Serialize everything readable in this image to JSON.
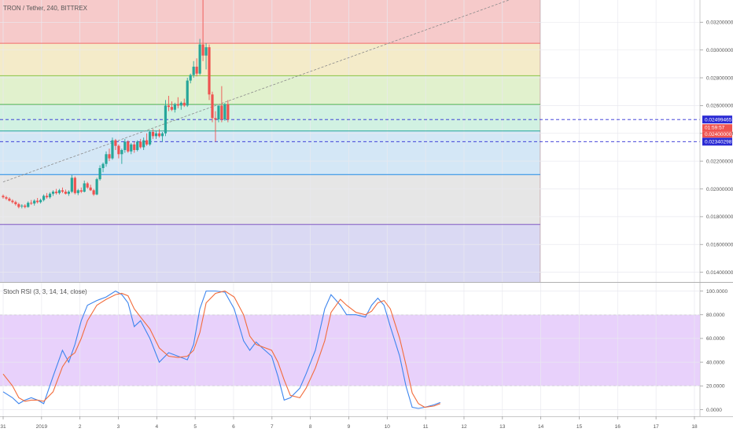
{
  "chart_data": [
    {
      "type": "candlestick",
      "title": "TRON / Tether, 240, BITTREX",
      "ylim": [
        0.0133,
        0.0336
      ],
      "y_ticks": [
        "0.01400000",
        "0.01600000",
        "0.01800000",
        "0.02000000",
        "0.02200000",
        "0.02400000",
        "0.02600000",
        "0.02800000",
        "0.03000000",
        "0.03200000"
      ],
      "y_tick_values": [
        0.014,
        0.016,
        0.018,
        0.02,
        0.022,
        0.024,
        0.026,
        0.028,
        0.03,
        0.032
      ],
      "x_tick_labels": [
        "31",
        "2019",
        "2",
        "3",
        "4",
        "5",
        "6",
        "7",
        "8",
        "9",
        "10",
        "11",
        "12",
        "13",
        "14",
        "15",
        "16",
        "17",
        "18"
      ],
      "x_tick_index": [
        0,
        12.3,
        24.6,
        36.9,
        49.2,
        61.5,
        73.8,
        86.1,
        98.4,
        110.7,
        123,
        135.3,
        147.6,
        159.9,
        172.2,
        184.5,
        196.8,
        209.1,
        221.4
      ],
      "grid": true,
      "fib_levels": [
        {
          "price": 0.03048,
          "color": "#f26b6b"
        },
        {
          "price": 0.02815,
          "color": "#8bc34a"
        },
        {
          "price": 0.02608,
          "color": "#4caf50"
        },
        {
          "price": 0.02417,
          "color": "#26a69a"
        },
        {
          "price": 0.02103,
          "color": "#1e88e5"
        },
        {
          "price": 0.01744,
          "color": "#7e57c2"
        }
      ],
      "fib_zones": [
        {
          "top": 0.0336,
          "bottom": 0.03048,
          "color": "#f5c1c1"
        },
        {
          "top": 0.03048,
          "bottom": 0.02815,
          "color": "#f2e7c0"
        },
        {
          "top": 0.02815,
          "bottom": 0.02608,
          "color": "#dcefc4"
        },
        {
          "top": 0.02608,
          "bottom": 0.02417,
          "color": "#c9eedd"
        },
        {
          "top": 0.02417,
          "bottom": 0.02103,
          "color": "#cde3f4"
        },
        {
          "top": 0.02103,
          "bottom": 0.01744,
          "color": "#e2e2e2"
        },
        {
          "top": 0.01744,
          "bottom": 0.0133,
          "color": "#d4d2f1"
        }
      ],
      "fib_right_index": 172,
      "horizontal_levels": [
        {
          "price": 0.02499465,
          "label": "0.02499465",
          "color": "#2a2ad4"
        },
        {
          "price": 0.02340298,
          "label": "0.02340298",
          "color": "#2a2ad4"
        }
      ],
      "last_price_label": "0.02400000",
      "countdown_label": "01:59:57",
      "trendline": {
        "x0": 0,
        "y0": 0.0205,
        "x1": 162,
        "y1": 0.0336
      },
      "candles": [
        [
          0.0195,
          0.0196,
          0.0193,
          0.0194
        ],
        [
          0.0194,
          0.0195,
          0.0192,
          0.0193
        ],
        [
          0.0193,
          0.0194,
          0.0191,
          0.01915
        ],
        [
          0.01915,
          0.01925,
          0.01895,
          0.01905
        ],
        [
          0.01905,
          0.01915,
          0.0188,
          0.0189
        ],
        [
          0.0189,
          0.019,
          0.0186,
          0.0187
        ],
        [
          0.01875,
          0.0189,
          0.0186,
          0.0188
        ],
        [
          0.0188,
          0.0189,
          0.0186,
          0.0187
        ],
        [
          0.0187,
          0.0191,
          0.01865,
          0.019
        ],
        [
          0.019,
          0.0192,
          0.01885,
          0.01895
        ],
        [
          0.01895,
          0.01925,
          0.0188,
          0.01915
        ],
        [
          0.01915,
          0.01935,
          0.01895,
          0.01905
        ],
        [
          0.01905,
          0.0193,
          0.01895,
          0.0192
        ],
        [
          0.0192,
          0.0196,
          0.0191,
          0.0195
        ],
        [
          0.0195,
          0.0197,
          0.0193,
          0.0194
        ],
        [
          0.0194,
          0.01975,
          0.0193,
          0.01965
        ],
        [
          0.01965,
          0.0199,
          0.0195,
          0.0198
        ],
        [
          0.0198,
          0.02,
          0.0196,
          0.0197
        ],
        [
          0.0197,
          0.02,
          0.0196,
          0.0199
        ],
        [
          0.0199,
          0.0201,
          0.0197,
          0.0198
        ],
        [
          0.0198,
          0.01995,
          0.0196,
          0.01965
        ],
        [
          0.01965,
          0.0199,
          0.0195,
          0.0198
        ],
        [
          0.0198,
          0.021,
          0.0197,
          0.0208
        ],
        [
          0.0208,
          0.0209,
          0.0196,
          0.0197
        ],
        [
          0.0197,
          0.02,
          0.01955,
          0.0199
        ],
        [
          0.0199,
          0.0201,
          0.0197,
          0.0198
        ],
        [
          0.0198,
          0.0206,
          0.01975,
          0.0204
        ],
        [
          0.0204,
          0.0205,
          0.02,
          0.0201
        ],
        [
          0.0201,
          0.0203,
          0.01985,
          0.0199
        ],
        [
          0.0199,
          0.02,
          0.0195,
          0.0196
        ],
        [
          0.0196,
          0.0208,
          0.01955,
          0.0207
        ],
        [
          0.0207,
          0.0217,
          0.0206,
          0.0215
        ],
        [
          0.0215,
          0.0219,
          0.0212,
          0.0218
        ],
        [
          0.0218,
          0.0227,
          0.0216,
          0.0225
        ],
        [
          0.0225,
          0.0229,
          0.022,
          0.0222
        ],
        [
          0.0222,
          0.0237,
          0.0221,
          0.0235
        ],
        [
          0.0235,
          0.0236,
          0.0228,
          0.0231
        ],
        [
          0.0231,
          0.0232,
          0.0222,
          0.0225
        ],
        [
          0.0225,
          0.0229,
          0.0218,
          0.0228
        ],
        [
          0.0228,
          0.0236,
          0.0226,
          0.0234
        ],
        [
          0.0234,
          0.0235,
          0.0226,
          0.0227
        ],
        [
          0.0227,
          0.0233,
          0.0225,
          0.0232
        ],
        [
          0.0232,
          0.0234,
          0.0226,
          0.0228
        ],
        [
          0.0228,
          0.0235,
          0.0227,
          0.0234
        ],
        [
          0.0234,
          0.0236,
          0.0229,
          0.023
        ],
        [
          0.023,
          0.0237,
          0.0228,
          0.0235
        ],
        [
          0.0235,
          0.024,
          0.0231,
          0.0232
        ],
        [
          0.0232,
          0.0242,
          0.0231,
          0.0241
        ],
        [
          0.0241,
          0.0243,
          0.0236,
          0.0238
        ],
        [
          0.0238,
          0.0242,
          0.0236,
          0.024
        ],
        [
          0.024,
          0.0243,
          0.0237,
          0.0238
        ],
        [
          0.0238,
          0.0241,
          0.0234,
          0.024
        ],
        [
          0.024,
          0.0264,
          0.0238,
          0.026
        ],
        [
          0.026,
          0.0267,
          0.0256,
          0.0259
        ],
        [
          0.0259,
          0.0263,
          0.0256,
          0.0257
        ],
        [
          0.0257,
          0.0262,
          0.0255,
          0.0261
        ],
        [
          0.0261,
          0.0266,
          0.0258,
          0.026
        ],
        [
          0.026,
          0.0263,
          0.0257,
          0.0262
        ],
        [
          0.0262,
          0.0265,
          0.0259,
          0.026
        ],
        [
          0.026,
          0.028,
          0.0259,
          0.0278
        ],
        [
          0.0278,
          0.0283,
          0.0276,
          0.0282
        ],
        [
          0.0282,
          0.0292,
          0.028,
          0.0288
        ],
        [
          0.0288,
          0.0294,
          0.0281,
          0.0283
        ],
        [
          0.0283,
          0.0308,
          0.0282,
          0.0304
        ],
        [
          0.0304,
          0.0336,
          0.0292,
          0.0296
        ],
        [
          0.0296,
          0.0305,
          0.0286,
          0.0302
        ],
        [
          0.0302,
          0.0304,
          0.0264,
          0.0268
        ],
        [
          0.0268,
          0.027,
          0.0248,
          0.0251
        ],
        [
          0.0251,
          0.0256,
          0.0234,
          0.025
        ],
        [
          0.025,
          0.026,
          0.0248,
          0.026
        ],
        [
          0.026,
          0.0274,
          0.0248,
          0.025
        ],
        [
          0.025,
          0.0262,
          0.0249,
          0.0261
        ],
        [
          0.0261,
          0.0264,
          0.0248,
          0.025
        ]
      ]
    },
    {
      "type": "line",
      "title": "Stoch RSI (3, 3, 14, 14, close)",
      "ylim": [
        -3,
        103
      ],
      "y_ticks": [
        "0.0000",
        "20.0000",
        "40.0000",
        "60.0000",
        "80.0000",
        "100.0000"
      ],
      "y_tick_values": [
        0,
        20,
        40,
        60,
        80,
        100
      ],
      "band": {
        "upper": 80,
        "lower": 20,
        "color": "#e6ccfb"
      },
      "series": [
        {
          "color": "#3d85ee",
          "values": [
            [
              0,
              15
            ],
            [
              3,
              10
            ],
            [
              5,
              5
            ],
            [
              7,
              8
            ],
            [
              9,
              10
            ],
            [
              11,
              8
            ],
            [
              13,
              5
            ],
            [
              16,
              28
            ],
            [
              19,
              50
            ],
            [
              21,
              40
            ],
            [
              23,
              55
            ],
            [
              25,
              75
            ],
            [
              27,
              88
            ],
            [
              30,
              92
            ],
            [
              33,
              95
            ],
            [
              36,
              100
            ],
            [
              38,
              97
            ],
            [
              40,
              90
            ],
            [
              42,
              70
            ],
            [
              44,
              75
            ],
            [
              47,
              60
            ],
            [
              50,
              40
            ],
            [
              53,
              48
            ],
            [
              56,
              45
            ],
            [
              59,
              42
            ],
            [
              61,
              55
            ],
            [
              63,
              85
            ],
            [
              65,
              100
            ],
            [
              68,
              100
            ],
            [
              71,
              99
            ],
            [
              74,
              85
            ],
            [
              77,
              58
            ],
            [
              79,
              50
            ],
            [
              81,
              57
            ],
            [
              83,
              52
            ],
            [
              86,
              45
            ],
            [
              88,
              28
            ],
            [
              90,
              8
            ],
            [
              92,
              10
            ],
            [
              95,
              18
            ],
            [
              97,
              30
            ],
            [
              100,
              50
            ],
            [
              103,
              85
            ],
            [
              105,
              97
            ],
            [
              108,
              88
            ],
            [
              110,
              80
            ],
            [
              113,
              80
            ],
            [
              116,
              78
            ],
            [
              118,
              88
            ],
            [
              120,
              94
            ],
            [
              122,
              88
            ],
            [
              124,
              70
            ],
            [
              127,
              45
            ],
            [
              129,
              20
            ],
            [
              131,
              2
            ],
            [
              133,
              1
            ],
            [
              135,
              2
            ],
            [
              138,
              4
            ],
            [
              140,
              6
            ]
          ]
        },
        {
          "color": "#f26b3a",
          "values": [
            [
              0,
              30
            ],
            [
              3,
              20
            ],
            [
              5,
              10
            ],
            [
              7,
              7
            ],
            [
              9,
              8
            ],
            [
              11,
              8
            ],
            [
              13,
              7
            ],
            [
              16,
              15
            ],
            [
              19,
              36
            ],
            [
              21,
              44
            ],
            [
              23,
              48
            ],
            [
              25,
              60
            ],
            [
              27,
              75
            ],
            [
              30,
              88
            ],
            [
              33,
              93
            ],
            [
              36,
              97
            ],
            [
              38,
              98
            ],
            [
              40,
              96
            ],
            [
              42,
              85
            ],
            [
              44,
              78
            ],
            [
              47,
              68
            ],
            [
              50,
              52
            ],
            [
              53,
              45
            ],
            [
              56,
              44
            ],
            [
              59,
              45
            ],
            [
              61,
              50
            ],
            [
              63,
              65
            ],
            [
              65,
              90
            ],
            [
              68,
              98
            ],
            [
              71,
              100
            ],
            [
              74,
              95
            ],
            [
              77,
              80
            ],
            [
              79,
              62
            ],
            [
              81,
              55
            ],
            [
              83,
              53
            ],
            [
              86,
              50
            ],
            [
              88,
              40
            ],
            [
              90,
              25
            ],
            [
              92,
              12
            ],
            [
              95,
              10
            ],
            [
              97,
              18
            ],
            [
              100,
              35
            ],
            [
              103,
              58
            ],
            [
              105,
              82
            ],
            [
              108,
              93
            ],
            [
              110,
              88
            ],
            [
              113,
              82
            ],
            [
              116,
              80
            ],
            [
              118,
              83
            ],
            [
              120,
              90
            ],
            [
              122,
              92
            ],
            [
              124,
              85
            ],
            [
              127,
              60
            ],
            [
              129,
              38
            ],
            [
              131,
              14
            ],
            [
              133,
              5
            ],
            [
              135,
              2
            ],
            [
              138,
              3
            ],
            [
              140,
              5
            ]
          ]
        }
      ]
    }
  ]
}
